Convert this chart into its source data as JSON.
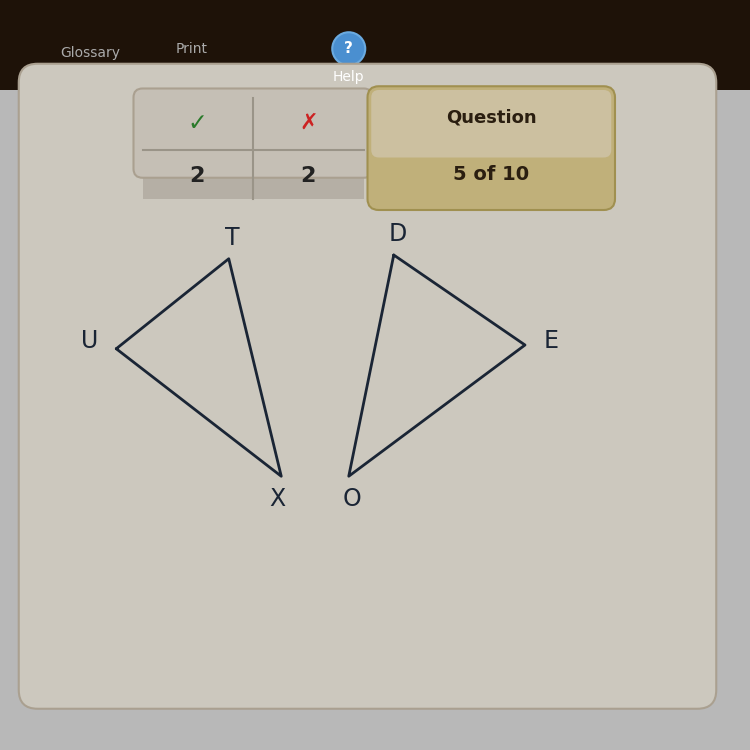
{
  "background_color": "#b8b8b8",
  "top_bar_color": "#2a1e10",
  "panel_bg": "#cdc8be",
  "score_box_top": "#c0bab0",
  "score_box_bottom": "#b0a898",
  "question_box_top": "#c8b888",
  "question_box_bottom": "#b8a870",
  "check_color": "#2a7a2a",
  "x_color": "#cc2222",
  "question_label": "Question",
  "question_number": "5 of 10",
  "tri1": {
    "U": [
      0.155,
      0.535
    ],
    "T": [
      0.305,
      0.655
    ],
    "X": [
      0.375,
      0.365
    ]
  },
  "tri2": {
    "D": [
      0.525,
      0.66
    ],
    "E": [
      0.7,
      0.54
    ],
    "O": [
      0.465,
      0.365
    ]
  },
  "line_color": "#1a2535",
  "label_fontsize": 17,
  "figsize": [
    7.5,
    7.5
  ],
  "dpi": 100
}
